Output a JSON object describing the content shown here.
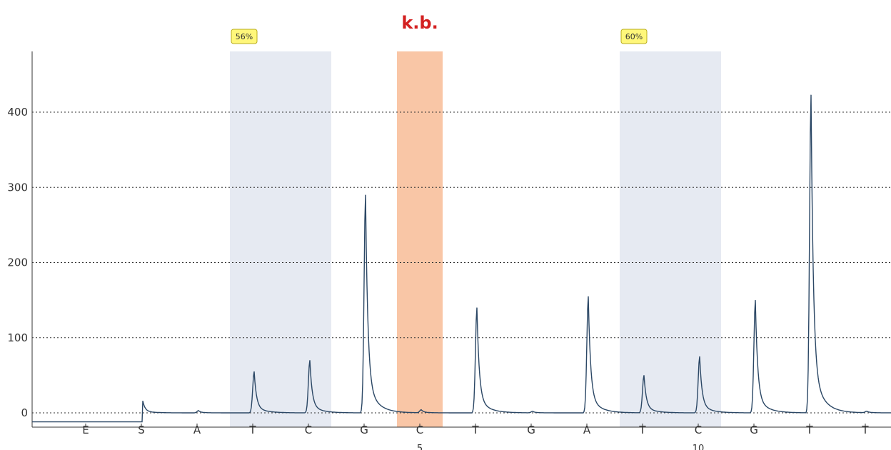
{
  "chart_data": {
    "type": "line",
    "title": "",
    "xlabel": "",
    "ylabel": "",
    "ylim": [
      -15,
      480
    ],
    "y_ticks": [
      0,
      100,
      200,
      300,
      400
    ],
    "grid": "horizontal dotted",
    "dispensations": [
      "E",
      "S",
      "A",
      "T",
      "C",
      "G",
      "C",
      "T",
      "G",
      "A",
      "T",
      "C",
      "G",
      "T",
      "T"
    ],
    "position_labels": [
      {
        "dispensation_index": 6,
        "label": "5"
      },
      {
        "dispensation_index": 11,
        "label": "10"
      }
    ],
    "highlight_regions": [
      {
        "kind": "cpg-site",
        "from_index": 3,
        "to_index": 4,
        "badge": "56%",
        "color": "#e6eaf2"
      },
      {
        "kind": "control",
        "from_index": 6,
        "to_index": 6,
        "label": "k.b.",
        "color": "#f9c6a6",
        "label_color": "#d32020"
      },
      {
        "kind": "cpg-site",
        "from_index": 10,
        "to_index": 11,
        "badge": "60%",
        "color": "#e6eaf2"
      }
    ],
    "series": [
      {
        "color": "#2b4765",
        "baseline_start": -12,
        "peaks": [
          {
            "x": 1,
            "value": 16
          },
          {
            "x": 2,
            "value": 3
          },
          {
            "x": 3,
            "value": 55
          },
          {
            "x": 4,
            "value": 70
          },
          {
            "x": 5,
            "value": 290
          },
          {
            "x": 6,
            "value": 4
          },
          {
            "x": 7,
            "value": 140
          },
          {
            "x": 8,
            "value": 2
          },
          {
            "x": 9,
            "value": 155
          },
          {
            "x": 10,
            "value": 50
          },
          {
            "x": 11,
            "value": 75
          },
          {
            "x": 12,
            "value": 150
          },
          {
            "x": 13,
            "value": 423
          },
          {
            "x": 14,
            "value": 2
          }
        ]
      }
    ]
  }
}
